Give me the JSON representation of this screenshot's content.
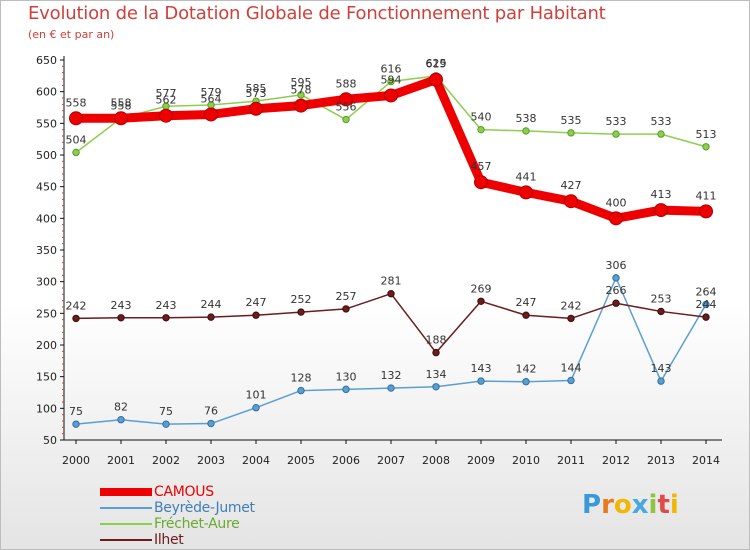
{
  "header": {
    "title": "Evolution de la Dotation Globale de Fonctionnement par Habitant",
    "subtitle": "(en € et par an)"
  },
  "chart_data": {
    "type": "line",
    "title": "Evolution de la Dotation Globale de Fonctionnement par Habitant",
    "subtitle": "(en € et par an)",
    "xlabel": "",
    "ylabel": "",
    "ylim": [
      50,
      650
    ],
    "yticks": [
      50,
      100,
      150,
      200,
      250,
      300,
      350,
      400,
      450,
      500,
      550,
      600,
      650
    ],
    "grid": false,
    "legend_position": "bottom-left",
    "x": [
      "2000",
      "2001",
      "2002",
      "2003",
      "2004",
      "2005",
      "2006",
      "2007",
      "2008",
      "2009",
      "2010",
      "2011",
      "2012",
      "2013",
      "2014"
    ],
    "series": [
      {
        "name": "CAMOUS",
        "color": "#ee0000",
        "values": [
          558,
          558,
          562,
          564,
          573,
          578,
          588,
          594,
          619,
          457,
          441,
          427,
          400,
          413,
          411
        ]
      },
      {
        "name": "Beyrède-Jumet",
        "color": "#5b9fd2",
        "values": [
          75,
          82,
          75,
          76,
          101,
          128,
          130,
          132,
          134,
          143,
          142,
          144,
          306,
          143,
          264
        ]
      },
      {
        "name": "Fréchet-Aure",
        "color": "#8ccf4d",
        "values": [
          504,
          558,
          577,
          579,
          585,
          595,
          556,
          616,
          625,
          540,
          538,
          535,
          533,
          533,
          513
        ]
      },
      {
        "name": "Ilhet",
        "color": "#6b1c1c",
        "values": [
          242,
          243,
          243,
          244,
          247,
          252,
          257,
          281,
          188,
          269,
          247,
          242,
          266,
          253,
          244
        ]
      }
    ]
  },
  "legend": {
    "items": [
      {
        "name": "CAMOUS",
        "color": "#ee0000",
        "text_color": "#ee0000"
      },
      {
        "name": "Beyrède-Jumet",
        "color": "#5b9fd2",
        "text_color": "#3f7fb8"
      },
      {
        "name": "Fréchet-Aure",
        "color": "#8ccf4d",
        "text_color": "#6aab2e"
      },
      {
        "name": "Ilhet",
        "color": "#6b1c1c",
        "text_color": "#6b1c1c"
      }
    ]
  },
  "logo": {
    "text": "Proxiti",
    "letter_colors": [
      "#3a9ad9",
      "#e87a1e",
      "#f2b705",
      "#4aa8e0",
      "#8cc63f",
      "#e04a4a",
      "#f2b705"
    ]
  }
}
